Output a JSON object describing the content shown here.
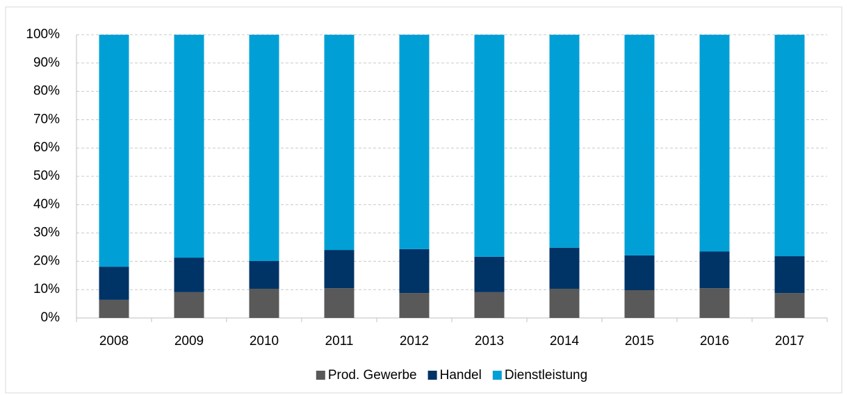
{
  "chart_data": {
    "type": "stacked_bar",
    "categories": [
      "2008",
      "2009",
      "2010",
      "2011",
      "2012",
      "2013",
      "2014",
      "2015",
      "2016",
      "2017"
    ],
    "series": [
      {
        "name": "Prod. Gewerbe",
        "color": "#595959",
        "values": [
          6.4,
          9.1,
          10.3,
          10.5,
          8.8,
          9.1,
          10.3,
          9.8,
          10.5,
          8.8
        ]
      },
      {
        "name": "Handel",
        "color": "#003366",
        "values": [
          11.7,
          12.2,
          9.8,
          13.5,
          15.5,
          12.5,
          14.5,
          12.3,
          13.0,
          13.0
        ]
      },
      {
        "name": "Dienstleistung",
        "color": "#00a0d6",
        "values": [
          81.9,
          78.7,
          79.9,
          76.0,
          75.7,
          78.4,
          75.2,
          77.9,
          76.5,
          78.2
        ]
      }
    ],
    "ylim": [
      0,
      100
    ],
    "yticks": [
      {
        "value": 0,
        "label": "0%"
      },
      {
        "value": 10,
        "label": "10%"
      },
      {
        "value": 20,
        "label": "20%"
      },
      {
        "value": 30,
        "label": "30%"
      },
      {
        "value": 40,
        "label": "40%"
      },
      {
        "value": 50,
        "label": "50%"
      },
      {
        "value": 60,
        "label": "60%"
      },
      {
        "value": 70,
        "label": "70%"
      },
      {
        "value": 80,
        "label": "80%"
      },
      {
        "value": 90,
        "label": "90%"
      },
      {
        "value": 100,
        "label": "100%"
      }
    ],
    "grid": true,
    "legend": "bottom"
  }
}
